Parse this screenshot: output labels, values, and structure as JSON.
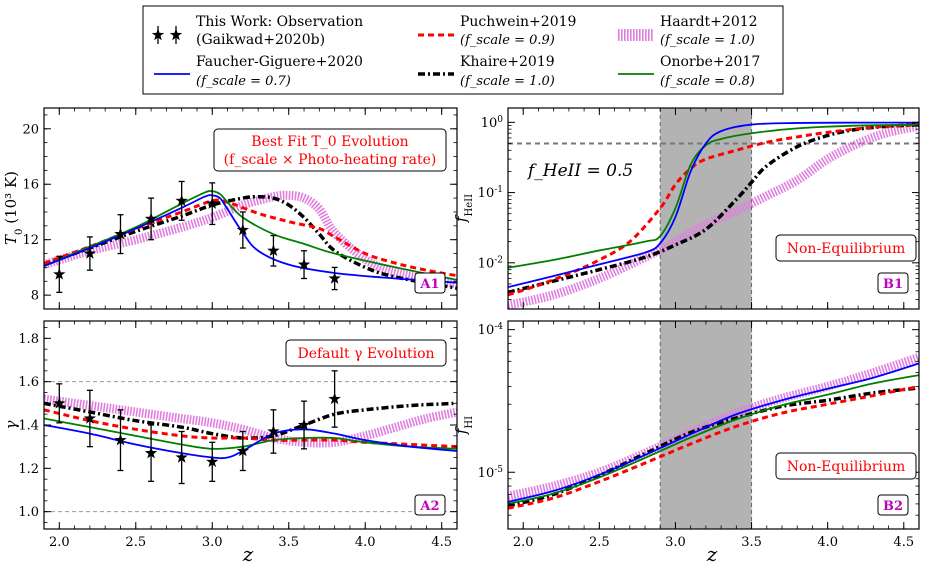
{
  "chart_data": {
    "type": "line",
    "legend_position": "top-center",
    "legend": [
      {
        "key": "obs",
        "line1": "This Work: Observation",
        "line2": "(Gaikwad+2020b)",
        "color": "#000000",
        "style": "star-errorbar"
      },
      {
        "key": "pu",
        "line1": "Puchwein+2019",
        "line2": "(f_scale = 0.9)",
        "color": "#ff0000",
        "style": "dashed"
      },
      {
        "key": "ha",
        "line1": "Haardt+2012",
        "line2": "(f_scale = 1.0)",
        "color": "#e07ee0",
        "style": "hatched"
      },
      {
        "key": "fg",
        "line1": "Faucher-Giguere+2020",
        "line2": "(f_scale = 0.7)",
        "color": "#0000ff",
        "style": "solid"
      },
      {
        "key": "kh",
        "line1": "Khaire+2019",
        "line2": "(f_scale = 1.0)",
        "color": "#000000",
        "style": "dashdot"
      },
      {
        "key": "on",
        "line1": "Onorbe+2017",
        "line2": "(f_scale = 0.8)",
        "color": "#008000",
        "style": "solid"
      }
    ],
    "xlabel": "z",
    "xlim": [
      1.9,
      4.6
    ],
    "xticks": [
      "2.0",
      "2.5",
      "3.0",
      "3.5",
      "4.0",
      "4.5"
    ],
    "panels": [
      {
        "id": "A1",
        "tag": "A1",
        "ylabel": "T_0 (10^3 K)",
        "yscale": "linear",
        "ylim": [
          7.0,
          21.5
        ],
        "yticks": [
          "8",
          "12",
          "16",
          "20"
        ],
        "annotation": {
          "line1": "Best Fit T_0 Evolution",
          "line2": "(f_scale × Photo-heating rate)"
        },
        "observations": {
          "x": [
            2.0,
            2.2,
            2.4,
            2.6,
            2.8,
            3.0,
            3.2,
            3.4,
            3.6,
            3.8
          ],
          "y": [
            9.5,
            11.0,
            12.4,
            13.5,
            14.8,
            14.6,
            12.7,
            11.2,
            10.2,
            9.2
          ],
          "err": [
            1.3,
            1.2,
            1.4,
            1.5,
            1.4,
            1.5,
            1.3,
            1.1,
            1.0,
            0.8
          ]
        },
        "series": [
          {
            "key": "fg",
            "x": [
              1.9,
              2.2,
              2.5,
              2.8,
              2.95,
              3.0,
              3.05,
              3.1,
              3.2,
              3.3,
              3.5,
              3.8,
              4.2,
              4.6
            ],
            "y": [
              10.1,
              11.4,
              12.8,
              14.3,
              15.1,
              15.2,
              15.0,
              14.2,
              12.5,
              11.2,
              10.2,
              9.6,
              9.2,
              8.9
            ]
          },
          {
            "key": "on",
            "x": [
              1.9,
              2.2,
              2.5,
              2.8,
              2.95,
              3.0,
              3.05,
              3.1,
              3.2,
              3.4,
              3.6,
              3.8,
              4.2,
              4.6
            ],
            "y": [
              10.1,
              11.5,
              12.9,
              14.6,
              15.4,
              15.5,
              15.3,
              14.7,
              13.6,
              12.4,
              11.7,
              11.0,
              10.0,
              9.1
            ]
          },
          {
            "key": "pu",
            "x": [
              1.9,
              2.2,
              2.5,
              2.8,
              3.0,
              3.1,
              3.3,
              3.5,
              3.7,
              3.8,
              4.0,
              4.2,
              4.4,
              4.6
            ],
            "y": [
              10.3,
              11.5,
              12.8,
              14.0,
              14.8,
              14.7,
              13.9,
              13.3,
              12.8,
              12.2,
              11.0,
              10.3,
              9.8,
              9.4
            ]
          },
          {
            "key": "kh",
            "x": [
              1.9,
              2.2,
              2.5,
              2.8,
              3.0,
              3.2,
              3.3,
              3.4,
              3.5,
              3.6,
              3.7,
              3.8,
              4.0,
              4.2,
              4.6
            ],
            "y": [
              10.2,
              11.4,
              12.6,
              13.7,
              14.5,
              15.0,
              15.1,
              15.0,
              14.5,
              13.6,
              12.4,
              11.2,
              10.0,
              9.3,
              8.5
            ]
          },
          {
            "key": "ha",
            "x": [
              1.9,
              2.2,
              2.5,
              2.8,
              3.0,
              3.2,
              3.4,
              3.5,
              3.6,
              3.7,
              3.8,
              4.0,
              4.2,
              4.6
            ],
            "y": [
              10.2,
              11.2,
              12.0,
              12.9,
              13.6,
              14.5,
              15.1,
              15.2,
              15.0,
              14.2,
              12.5,
              10.6,
              9.6,
              8.8
            ]
          }
        ]
      },
      {
        "id": "A2",
        "tag": "A2",
        "ylabel": "γ",
        "yscale": "linear",
        "ylim": [
          0.92,
          1.88
        ],
        "yticks": [
          "1.0",
          "1.2",
          "1.4",
          "1.6",
          "1.8"
        ],
        "hlines": [
          1.0,
          1.6
        ],
        "annotation": {
          "line1": "Default γ Evolution",
          "line2": ""
        },
        "observations": {
          "x": [
            2.0,
            2.2,
            2.4,
            2.6,
            2.8,
            3.0,
            3.2,
            3.4,
            3.6,
            3.8
          ],
          "y": [
            1.5,
            1.43,
            1.33,
            1.27,
            1.25,
            1.23,
            1.28,
            1.37,
            1.4,
            1.52
          ],
          "err": [
            0.09,
            0.13,
            0.14,
            0.13,
            0.12,
            0.09,
            0.09,
            0.1,
            0.11,
            0.13
          ]
        },
        "series": [
          {
            "key": "fg",
            "x": [
              1.9,
              2.2,
              2.5,
              2.8,
              3.0,
              3.1,
              3.2,
              3.4,
              3.6,
              3.8,
              4.0,
              4.3,
              4.6
            ],
            "y": [
              1.4,
              1.36,
              1.31,
              1.27,
              1.25,
              1.25,
              1.28,
              1.36,
              1.38,
              1.36,
              1.33,
              1.3,
              1.28
            ]
          },
          {
            "key": "on",
            "x": [
              1.9,
              2.2,
              2.5,
              2.8,
              3.0,
              3.2,
              3.4,
              3.6,
              3.8,
              4.0,
              4.3,
              4.6
            ],
            "y": [
              1.43,
              1.39,
              1.35,
              1.31,
              1.29,
              1.3,
              1.33,
              1.34,
              1.34,
              1.32,
              1.3,
              1.29
            ]
          },
          {
            "key": "pu",
            "x": [
              1.9,
              2.2,
              2.5,
              2.8,
              3.0,
              3.2,
              3.4,
              3.6,
              3.8,
              4.0,
              4.3,
              4.6
            ],
            "y": [
              1.47,
              1.42,
              1.38,
              1.35,
              1.34,
              1.34,
              1.33,
              1.33,
              1.33,
              1.32,
              1.31,
              1.3
            ]
          },
          {
            "key": "kh",
            "x": [
              1.9,
              2.2,
              2.5,
              2.8,
              3.0,
              3.2,
              3.4,
              3.6,
              3.8,
              4.0,
              4.3,
              4.6
            ],
            "y": [
              1.5,
              1.46,
              1.42,
              1.39,
              1.36,
              1.34,
              1.35,
              1.4,
              1.45,
              1.47,
              1.49,
              1.5
            ]
          },
          {
            "key": "ha",
            "x": [
              1.9,
              2.2,
              2.5,
              2.8,
              3.0,
              3.2,
              3.4,
              3.6,
              3.8,
              4.0,
              4.2,
              4.4,
              4.6
            ],
            "y": [
              1.52,
              1.49,
              1.46,
              1.43,
              1.41,
              1.38,
              1.34,
              1.32,
              1.32,
              1.35,
              1.39,
              1.43,
              1.46
            ]
          }
        ]
      },
      {
        "id": "B1",
        "tag": "B1",
        "ylabel": "f_HeII",
        "yscale": "log",
        "ylim": [
          0.0022,
          1.6
        ],
        "ytick_values": [
          0.01,
          0.1,
          1
        ],
        "yticks": [
          "10^-2",
          "10^-1",
          "10^0"
        ],
        "hlines": [
          0.5
        ],
        "shade": [
          2.9,
          3.5
        ],
        "annotation_label": "f_HeII = 0.5",
        "annotation_box": "Non-Equilibrium",
        "series": [
          {
            "key": "fg",
            "x": [
              1.9,
              2.2,
              2.5,
              2.8,
              2.9,
              3.0,
              3.1,
              3.2,
              3.3,
              3.5,
              3.8,
              4.2,
              4.6
            ],
            "y": [
              0.0045,
              0.0065,
              0.0095,
              0.014,
              0.019,
              0.045,
              0.2,
              0.5,
              0.75,
              0.93,
              0.98,
              0.99,
              0.99
            ]
          },
          {
            "key": "on",
            "x": [
              1.9,
              2.2,
              2.5,
              2.8,
              2.9,
              3.0,
              3.1,
              3.2,
              3.3,
              3.5,
              3.8,
              4.2,
              4.6
            ],
            "y": [
              0.0085,
              0.011,
              0.015,
              0.02,
              0.024,
              0.06,
              0.25,
              0.47,
              0.58,
              0.7,
              0.82,
              0.9,
              0.92
            ]
          },
          {
            "key": "pu",
            "x": [
              1.9,
              2.1,
              2.3,
              2.5,
              2.7,
              2.9,
              3.0,
              3.1,
              3.2,
              3.4,
              3.6,
              3.8,
              4.0,
              4.3,
              4.6
            ],
            "y": [
              0.0035,
              0.0048,
              0.007,
              0.011,
              0.02,
              0.06,
              0.13,
              0.22,
              0.3,
              0.4,
              0.52,
              0.62,
              0.72,
              0.85,
              0.93
            ]
          },
          {
            "key": "kh",
            "x": [
              1.9,
              2.2,
              2.5,
              2.8,
              3.0,
              3.2,
              3.4,
              3.5,
              3.6,
              3.8,
              4.0,
              4.2,
              4.4,
              4.6
            ],
            "y": [
              0.0038,
              0.0055,
              0.008,
              0.012,
              0.018,
              0.03,
              0.08,
              0.14,
              0.24,
              0.45,
              0.65,
              0.8,
              0.88,
              0.92
            ]
          },
          {
            "key": "ha",
            "x": [
              1.9,
              2.2,
              2.5,
              2.8,
              3.0,
              3.2,
              3.4,
              3.6,
              3.8,
              4.0,
              4.2,
              4.4,
              4.6
            ],
            "y": [
              0.0025,
              0.0035,
              0.006,
              0.012,
              0.02,
              0.035,
              0.055,
              0.09,
              0.15,
              0.3,
              0.5,
              0.72,
              0.88
            ]
          }
        ]
      },
      {
        "id": "B2",
        "tag": "B2",
        "ylabel": "f_HI",
        "yscale": "log",
        "ylim": [
          4e-06,
          0.000115
        ],
        "ytick_values": [
          1e-05,
          0.0001
        ],
        "yticks": [
          "10^-5",
          "10^-4"
        ],
        "shade": [
          2.9,
          3.5
        ],
        "annotation_box": "Non-Equilibrium",
        "series": [
          {
            "key": "fg",
            "x": [
              1.9,
              2.2,
              2.5,
              2.8,
              3.1,
              3.4,
              3.7,
              4.0,
              4.3,
              4.6
            ],
            "y": [
              6.2e-06,
              7.4e-06,
              9.6e-06,
              1.32e-05,
              1.85e-05,
              2.55e-05,
              3.2e-05,
              3.85e-05,
              4.6e-05,
              5.8e-05
            ]
          },
          {
            "key": "on",
            "x": [
              1.9,
              2.2,
              2.5,
              2.8,
              3.1,
              3.4,
              3.7,
              4.0,
              4.3,
              4.6
            ],
            "y": [
              6e-06,
              7.1e-06,
              9.2e-06,
              1.26e-05,
              1.75e-05,
              2.35e-05,
              2.95e-05,
              3.5e-05,
              4.2e-05,
              4.8e-05
            ]
          },
          {
            "key": "pu",
            "x": [
              1.9,
              2.2,
              2.5,
              2.8,
              3.1,
              3.4,
              3.7,
              4.0,
              4.3,
              4.6
            ],
            "y": [
              5.6e-06,
              6.6e-06,
              8.6e-06,
              1.16e-05,
              1.58e-05,
              2.1e-05,
              2.6e-05,
              3e-05,
              3.45e-05,
              4e-05
            ]
          },
          {
            "key": "kh",
            "x": [
              1.9,
              2.2,
              2.5,
              2.8,
              3.1,
              3.4,
              3.7,
              4.0,
              4.3,
              4.6
            ],
            "y": [
              5.8e-06,
              7e-06,
              9.5e-06,
              1.35e-05,
              1.9e-05,
              2.4e-05,
              2.9e-05,
              3.2e-05,
              3.6e-05,
              3.9e-05
            ]
          },
          {
            "key": "ha",
            "x": [
              1.9,
              2.2,
              2.5,
              2.8,
              3.1,
              3.4,
              3.7,
              4.0,
              4.3,
              4.6
            ],
            "y": [
              6.8e-06,
              8e-06,
              1e-05,
              1.36e-05,
              1.9e-05,
              2.6e-05,
              3.3e-05,
              4e-05,
              5e-05,
              6.4e-05
            ]
          }
        ]
      }
    ]
  }
}
